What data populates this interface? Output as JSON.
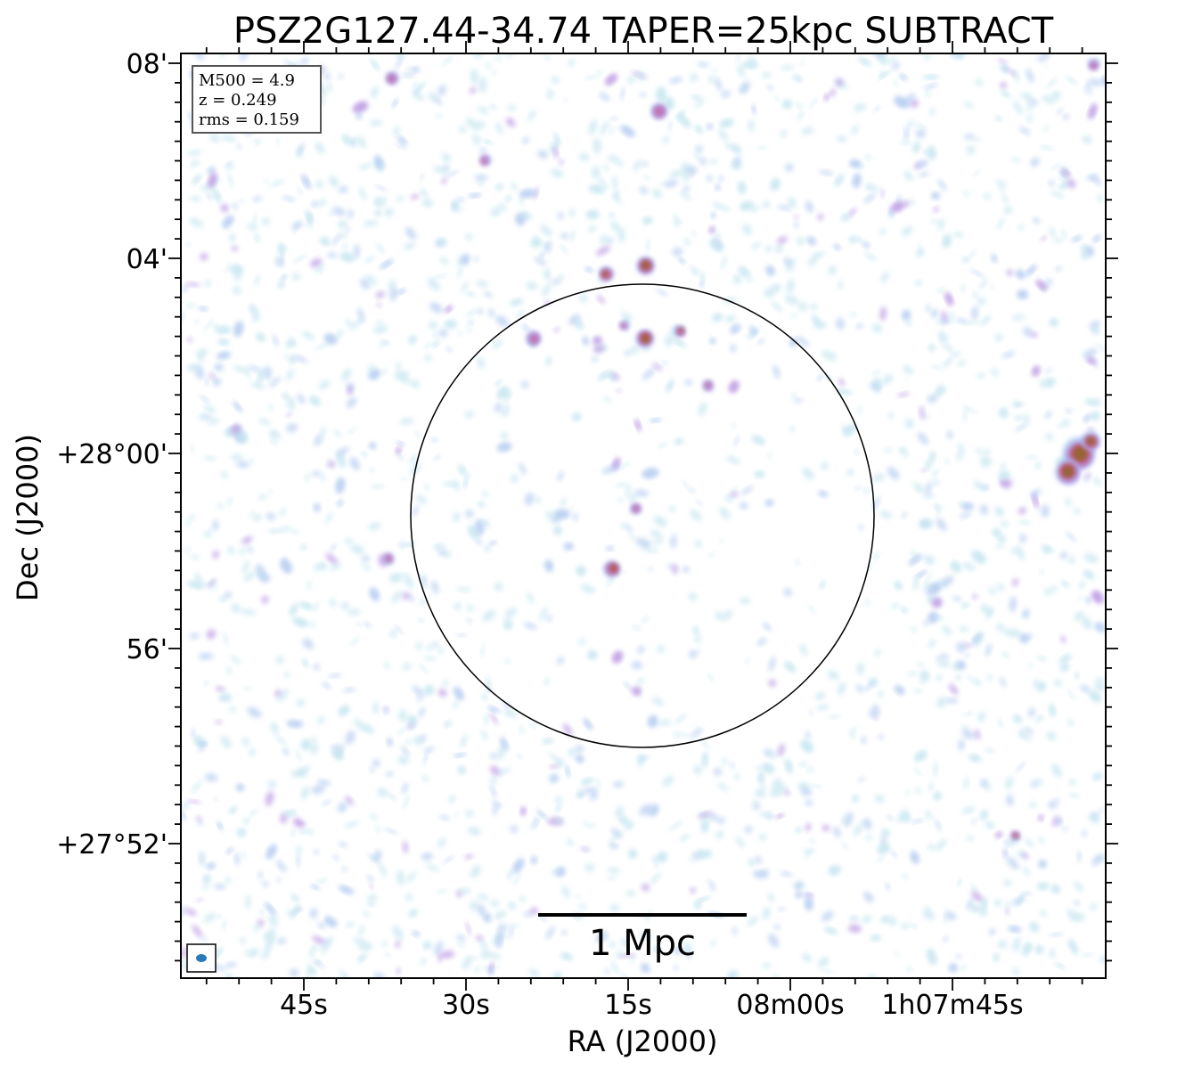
{
  "chart_data": {
    "type": "heatmap",
    "title": "PSZ2G127.44-34.74 TAPER=25kpc SUBTRACT",
    "xlabel": "RA (J2000)",
    "ylabel": "Dec (J2000)",
    "x_ticks": [
      "45s",
      "30s",
      "15s",
      "08m00s",
      "1h07m45s"
    ],
    "y_ticks": [
      "08'",
      "04'",
      "+28°00'",
      "56'",
      "+27°52'"
    ],
    "info_box": [
      "M500 = 4.9",
      "z = 0.249",
      "rms = 0.159"
    ],
    "scalebar_label": "1 Mpc",
    "colormap": [
      "#bfe3ee",
      "#a9c4ee",
      "#b48fe0",
      "#c266a6",
      "#b05030",
      "#8c6a30"
    ],
    "circle_color": "#000000",
    "beam_color": "#2a7ab8"
  }
}
